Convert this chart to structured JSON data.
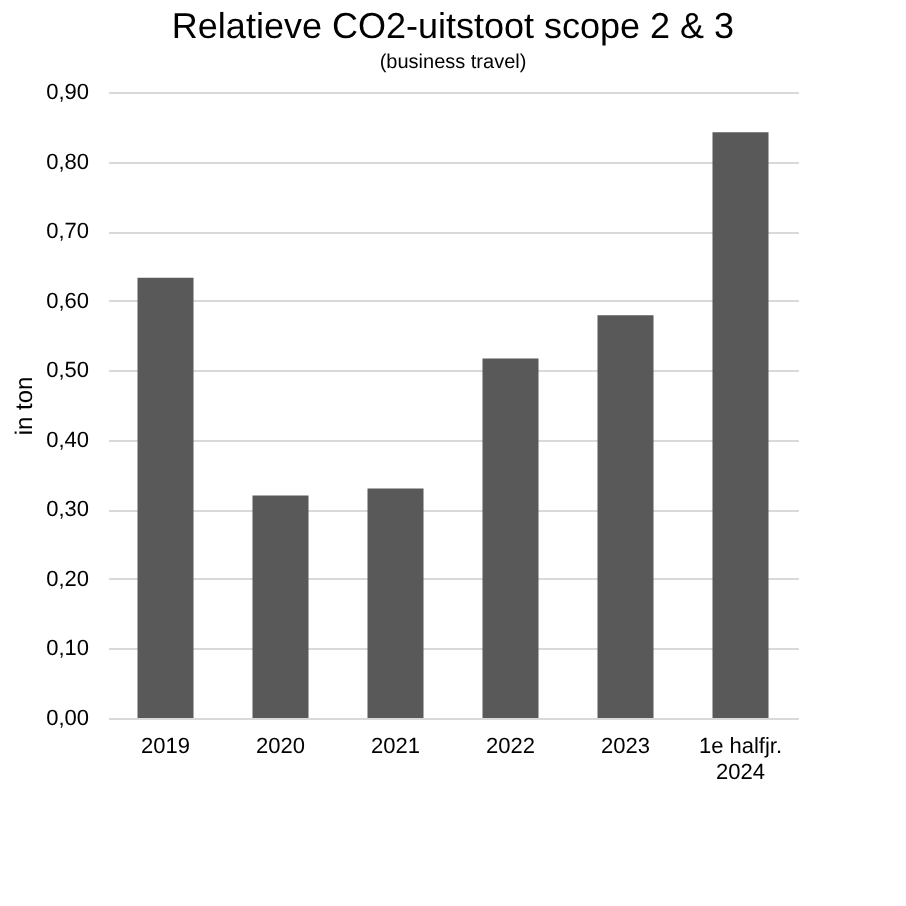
{
  "chart_data": {
    "type": "bar",
    "title": "Relatieve CO2-uitstoot scope 2 & 3",
    "subtitle": "(business travel)",
    "ylabel": "in ton",
    "categories": [
      "2019",
      "2020",
      "2021",
      "2022",
      "2023",
      "1e halfjr.\n2024"
    ],
    "values": [
      0.633,
      0.32,
      0.33,
      0.517,
      0.579,
      0.842
    ],
    "color": "#595959",
    "ylim": [
      0,
      0.9
    ],
    "yticks": [
      {
        "value": 0,
        "label": "0,00"
      },
      {
        "value": 0.1,
        "label": "0,10"
      },
      {
        "value": 0.2,
        "label": "0,20"
      },
      {
        "value": 0.3,
        "label": "0,30"
      },
      {
        "value": 0.4,
        "label": "0,40"
      },
      {
        "value": 0.5,
        "label": "0,50"
      },
      {
        "value": 0.6,
        "label": "0,60"
      },
      {
        "value": 0.7,
        "label": "0,70"
      },
      {
        "value": 0.8,
        "label": "0,80"
      },
      {
        "value": 0.9,
        "label": "0,90"
      }
    ],
    "grid": "y"
  }
}
